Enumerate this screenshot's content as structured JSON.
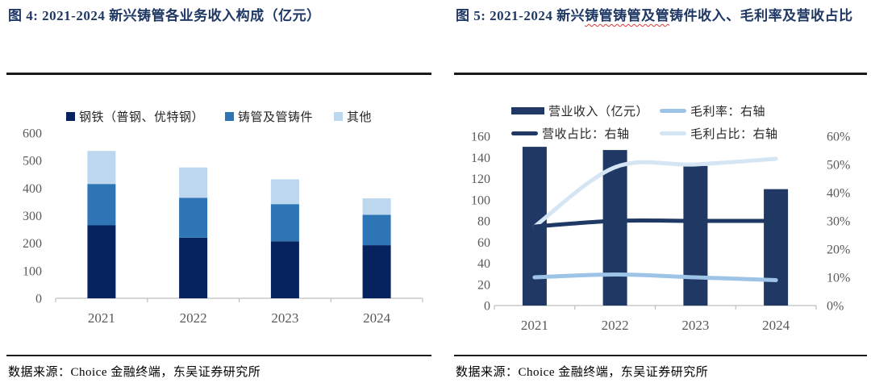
{
  "figure4": {
    "label": "图 4:",
    "title": "图 4: 2021-2024 新兴铸管各业务收入构成（亿元）",
    "source": "数据来源：Choice 金融终端，东吴证券研究所"
  },
  "figure5": {
    "label": "图 5:",
    "title_prefix": "图 5: 2021-2024 新兴",
    "title_wavy": "铸管铸管及管",
    "title_suffix": "铸件收入、毛利率及营收占比",
    "source": "数据来源：Choice 金融终端，东吴证券研究所"
  },
  "colors": {
    "title_navy": "#1f3864",
    "rule": "#1a1a1a",
    "axis_text": "#595959",
    "axis_line": "#bfbfbf"
  },
  "chart_data": [
    {
      "type": "bar",
      "stacked": true,
      "title": "2021-2024 新兴铸管各业务收入构成（亿元）",
      "categories": [
        "2021",
        "2022",
        "2023",
        "2024"
      ],
      "series": [
        {
          "name": "钢铁（普钢、优特钢）",
          "color": "#07235f",
          "values": [
            265,
            220,
            207,
            193
          ]
        },
        {
          "name": "铸管及管铸件",
          "color": "#2e75b6",
          "values": [
            150,
            145,
            135,
            110
          ]
        },
        {
          "name": "其他",
          "color": "#bdd7ee",
          "values": [
            120,
            110,
            90,
            60
          ]
        }
      ],
      "xlabel": "",
      "ylabel": "",
      "ylim": [
        0,
        600
      ],
      "ytick_step": 100,
      "grid": false,
      "legend_position": "top"
    },
    {
      "type": "combo",
      "title": "2021-2024 新兴铸管铸管及管铸件收入、毛利率及营收占比",
      "categories": [
        "2021",
        "2022",
        "2023",
        "2024"
      ],
      "bar_series": {
        "name": "营业收入（亿元）",
        "color": "#1f3864",
        "axis": "left",
        "values": [
          150,
          147,
          132,
          110
        ]
      },
      "line_series": [
        {
          "name": "毛利率：右轴",
          "color": "#9dc3e6",
          "axis": "right",
          "values_pct": [
            10,
            11,
            10,
            9
          ]
        },
        {
          "name": "营收占比：右轴",
          "color": "#1f3864",
          "axis": "right",
          "values_pct": [
            28,
            30,
            30,
            30
          ]
        },
        {
          "name": "毛利占比：右轴",
          "color": "#d6e5f4",
          "axis": "right",
          "values_pct": [
            28,
            49,
            50,
            52
          ]
        }
      ],
      "left_ylim": [
        0,
        160
      ],
      "left_tick_step": 20,
      "right_ylim_pct": [
        0,
        60
      ],
      "right_tick_step_pct": 10,
      "grid": false,
      "legend_position": "top"
    }
  ]
}
